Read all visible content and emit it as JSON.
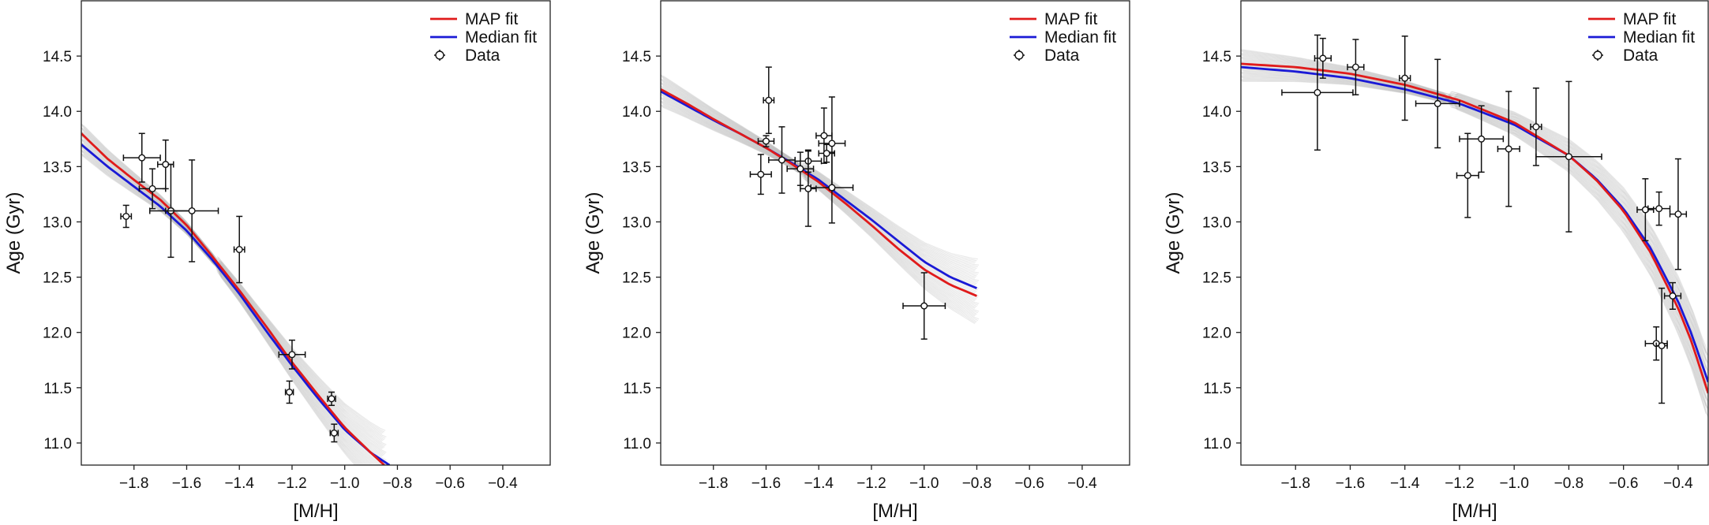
{
  "colors": {
    "map": "#e01b1b",
    "median": "#1a1ad6",
    "samples": "#9a9a9a",
    "data": "#111111"
  },
  "chart_data": [
    {
      "type": "line",
      "xlabel": "[M/H]",
      "ylabel": "Age (Gyr)",
      "xlim": [
        -2.0,
        -0.22
      ],
      "ylim": [
        10.8,
        15.0
      ],
      "xticks": [
        -1.8,
        -1.6,
        -1.4,
        -1.2,
        -1.0,
        -0.8,
        -0.6,
        -0.4
      ],
      "yticks": [
        11.0,
        11.5,
        12.0,
        12.5,
        13.0,
        13.5,
        14.0,
        14.5
      ],
      "grid": false,
      "legend": {
        "position": "top-right",
        "entries": [
          "MAP fit",
          "Median fit",
          "Data"
        ]
      },
      "series": [
        {
          "name": "MAP fit",
          "x": [
            -2.0,
            -1.9,
            -1.8,
            -1.7,
            -1.6,
            -1.5,
            -1.4,
            -1.3,
            -1.2,
            -1.1,
            -1.0,
            -0.9,
            -0.85
          ],
          "y": [
            13.8,
            13.57,
            13.38,
            13.2,
            12.97,
            12.68,
            12.38,
            12.06,
            11.73,
            11.43,
            11.14,
            10.91,
            10.8
          ]
        },
        {
          "name": "Median fit",
          "x": [
            -2.0,
            -1.9,
            -1.8,
            -1.7,
            -1.6,
            -1.5,
            -1.4,
            -1.3,
            -1.2,
            -1.1,
            -1.0,
            -0.9,
            -0.83
          ],
          "y": [
            13.7,
            13.5,
            13.32,
            13.14,
            12.92,
            12.65,
            12.35,
            12.02,
            11.7,
            11.4,
            11.12,
            10.91,
            10.8
          ]
        },
        {
          "name": "Data",
          "points": [
            {
              "x": -1.83,
              "y": 13.05,
              "xerr": 0.02,
              "yerr": 0.1
            },
            {
              "x": -1.77,
              "y": 13.58,
              "xerr": 0.07,
              "yerr": 0.22
            },
            {
              "x": -1.73,
              "y": 13.3,
              "xerr": 0.05,
              "yerr": 0.18
            },
            {
              "x": -1.68,
              "y": 13.52,
              "xerr": 0.03,
              "yerr": 0.22
            },
            {
              "x": -1.66,
              "y": 13.1,
              "xerr": 0.08,
              "yerr": 0.42
            },
            {
              "x": -1.58,
              "y": 13.1,
              "xerr": 0.1,
              "yerr": 0.46
            },
            {
              "x": -1.4,
              "y": 12.75,
              "xerr": 0.02,
              "yerr": 0.3
            },
            {
              "x": -1.2,
              "y": 11.8,
              "xerr": 0.05,
              "yerr": 0.13
            },
            {
              "x": -1.21,
              "y": 11.46,
              "xerr": 0.015,
              "yerr": 0.1
            },
            {
              "x": -1.05,
              "y": 11.4,
              "xerr": 0.015,
              "yerr": 0.06
            },
            {
              "x": -1.04,
              "y": 11.09,
              "xerr": 0.015,
              "yerr": 0.08
            }
          ]
        }
      ]
    },
    {
      "type": "line",
      "xlabel": "[M/H]",
      "ylabel": "Age (Gyr)",
      "xlim": [
        -2.0,
        -0.22
      ],
      "ylim": [
        10.8,
        15.0
      ],
      "xticks": [
        -1.8,
        -1.6,
        -1.4,
        -1.2,
        -1.0,
        -0.8,
        -0.6,
        -0.4
      ],
      "yticks": [
        11.0,
        11.5,
        12.0,
        12.5,
        13.0,
        13.5,
        14.0,
        14.5
      ],
      "grid": false,
      "legend": {
        "position": "top-right",
        "entries": [
          "MAP fit",
          "Median fit",
          "Data"
        ]
      },
      "series": [
        {
          "name": "MAP fit",
          "x": [
            -2.0,
            -1.9,
            -1.8,
            -1.7,
            -1.6,
            -1.5,
            -1.4,
            -1.3,
            -1.2,
            -1.1,
            -1.0,
            -0.9,
            -0.8
          ],
          "y": [
            14.2,
            14.07,
            13.93,
            13.8,
            13.67,
            13.52,
            13.36,
            13.17,
            12.97,
            12.76,
            12.57,
            12.43,
            12.33
          ]
        },
        {
          "name": "Median fit",
          "x": [
            -2.0,
            -1.9,
            -1.8,
            -1.7,
            -1.6,
            -1.5,
            -1.4,
            -1.3,
            -1.2,
            -1.1,
            -1.0,
            -0.9,
            -0.8
          ],
          "y": [
            14.18,
            14.05,
            13.92,
            13.8,
            13.67,
            13.53,
            13.38,
            13.2,
            13.02,
            12.83,
            12.64,
            12.5,
            12.4
          ]
        },
        {
          "name": "Data",
          "points": [
            {
              "x": -1.59,
              "y": 14.1,
              "xerr": 0.02,
              "yerr": 0.3
            },
            {
              "x": -1.62,
              "y": 13.43,
              "xerr": 0.04,
              "yerr": 0.18
            },
            {
              "x": -1.6,
              "y": 13.73,
              "xerr": 0.03,
              "yerr": 0.05
            },
            {
              "x": -1.54,
              "y": 13.56,
              "xerr": 0.05,
              "yerr": 0.3
            },
            {
              "x": -1.47,
              "y": 13.48,
              "xerr": 0.05,
              "yerr": 0.15
            },
            {
              "x": -1.44,
              "y": 13.55,
              "xerr": 0.05,
              "yerr": 0.1
            },
            {
              "x": -1.44,
              "y": 13.3,
              "xerr": 0.03,
              "yerr": 0.34
            },
            {
              "x": -1.38,
              "y": 13.78,
              "xerr": 0.03,
              "yerr": 0.25
            },
            {
              "x": -1.37,
              "y": 13.62,
              "xerr": 0.03,
              "yerr": 0.08
            },
            {
              "x": -1.35,
              "y": 13.71,
              "xerr": 0.05,
              "yerr": 0.42
            },
            {
              "x": -1.35,
              "y": 13.31,
              "xerr": 0.08,
              "yerr": 0.32
            },
            {
              "x": -1.0,
              "y": 12.24,
              "xerr": 0.08,
              "yerr": 0.3
            }
          ]
        }
      ]
    },
    {
      "type": "line",
      "xlabel": "[M/H]",
      "ylabel": "Age (Gyr)",
      "xlim": [
        -2.0,
        -0.29
      ],
      "ylim": [
        10.8,
        15.0
      ],
      "xticks": [
        -1.8,
        -1.6,
        -1.4,
        -1.2,
        -1.0,
        -0.8,
        -0.6,
        -0.4
      ],
      "yticks": [
        11.0,
        11.5,
        12.0,
        12.5,
        13.0,
        13.5,
        14.0,
        14.5
      ],
      "grid": false,
      "legend": {
        "position": "top-right",
        "entries": [
          "MAP fit",
          "Median fit",
          "Data"
        ]
      },
      "series": [
        {
          "name": "MAP fit",
          "x": [
            -2.0,
            -1.8,
            -1.6,
            -1.4,
            -1.2,
            -1.0,
            -0.8,
            -0.7,
            -0.6,
            -0.5,
            -0.4,
            -0.35,
            -0.29
          ],
          "y": [
            14.43,
            14.4,
            14.34,
            14.24,
            14.1,
            13.9,
            13.6,
            13.38,
            13.1,
            12.72,
            12.22,
            11.91,
            11.45
          ]
        },
        {
          "name": "Median fit",
          "x": [
            -2.0,
            -1.8,
            -1.6,
            -1.4,
            -1.2,
            -1.0,
            -0.8,
            -0.7,
            -0.6,
            -0.5,
            -0.4,
            -0.35,
            -0.29
          ],
          "y": [
            14.4,
            14.36,
            14.3,
            14.2,
            14.07,
            13.88,
            13.6,
            13.39,
            13.12,
            12.76,
            12.28,
            11.98,
            11.55
          ]
        },
        {
          "name": "Data",
          "points": [
            {
              "x": -1.7,
              "y": 14.48,
              "xerr": 0.03,
              "yerr": 0.18
            },
            {
              "x": -1.58,
              "y": 14.4,
              "xerr": 0.03,
              "yerr": 0.25
            },
            {
              "x": -1.72,
              "y": 14.17,
              "xerr": 0.13,
              "yerr": 0.52
            },
            {
              "x": -1.4,
              "y": 14.3,
              "xerr": 0.02,
              "yerr": 0.38
            },
            {
              "x": -1.28,
              "y": 14.07,
              "xerr": 0.08,
              "yerr": 0.4
            },
            {
              "x": -1.17,
              "y": 13.42,
              "xerr": 0.04,
              "yerr": 0.38
            },
            {
              "x": -1.12,
              "y": 13.75,
              "xerr": 0.08,
              "yerr": 0.3
            },
            {
              "x": -1.02,
              "y": 13.66,
              "xerr": 0.04,
              "yerr": 0.52
            },
            {
              "x": -0.92,
              "y": 13.86,
              "xerr": 0.02,
              "yerr": 0.35
            },
            {
              "x": -0.8,
              "y": 13.59,
              "xerr": 0.12,
              "yerr": 0.68
            },
            {
              "x": -0.52,
              "y": 13.11,
              "xerr": 0.03,
              "yerr": 0.28
            },
            {
              "x": -0.47,
              "y": 13.12,
              "xerr": 0.04,
              "yerr": 0.15
            },
            {
              "x": -0.4,
              "y": 13.07,
              "xerr": 0.03,
              "yerr": 0.5
            },
            {
              "x": -0.42,
              "y": 12.33,
              "xerr": 0.03,
              "yerr": 0.12
            },
            {
              "x": -0.48,
              "y": 11.9,
              "xerr": 0.04,
              "yerr": 0.15
            },
            {
              "x": -0.46,
              "y": 11.88,
              "xerr": 0.02,
              "yerr": 0.52
            }
          ]
        }
      ]
    }
  ]
}
